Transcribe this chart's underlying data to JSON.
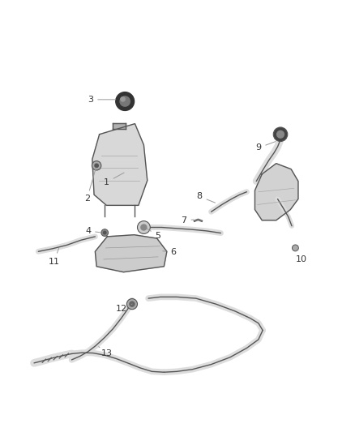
{
  "bg_color": "#ffffff",
  "line_color": "#555555",
  "label_color": "#333333",
  "leader_color": "#999999",
  "fill_light": "#d8d8d8",
  "fill_mid": "#cccccc",
  "fill_dark": "#333333",
  "pipe_fill": "#dddddd",
  "labels_info": [
    [
      1,
      0.3,
      0.595,
      0.355,
      0.625
    ],
    [
      2,
      0.245,
      0.548,
      0.272,
      0.642
    ],
    [
      3,
      0.255,
      0.828,
      0.332,
      0.828
    ],
    [
      4,
      0.248,
      0.458,
      0.288,
      0.453
    ],
    [
      5,
      0.445,
      0.445,
      0.408,
      0.468
    ],
    [
      6,
      0.488,
      0.398,
      0.452,
      0.402
    ],
    [
      7,
      0.518,
      0.488,
      0.552,
      0.49
    ],
    [
      8,
      0.562,
      0.555,
      0.612,
      0.535
    ],
    [
      9,
      0.728,
      0.692,
      0.782,
      0.712
    ],
    [
      10,
      0.848,
      0.378,
      0.832,
      0.412
    ],
    [
      11,
      0.152,
      0.372,
      0.168,
      0.415
    ],
    [
      12,
      0.342,
      0.238,
      0.372,
      0.252
    ],
    [
      13,
      0.302,
      0.112,
      0.278,
      0.132
    ]
  ]
}
